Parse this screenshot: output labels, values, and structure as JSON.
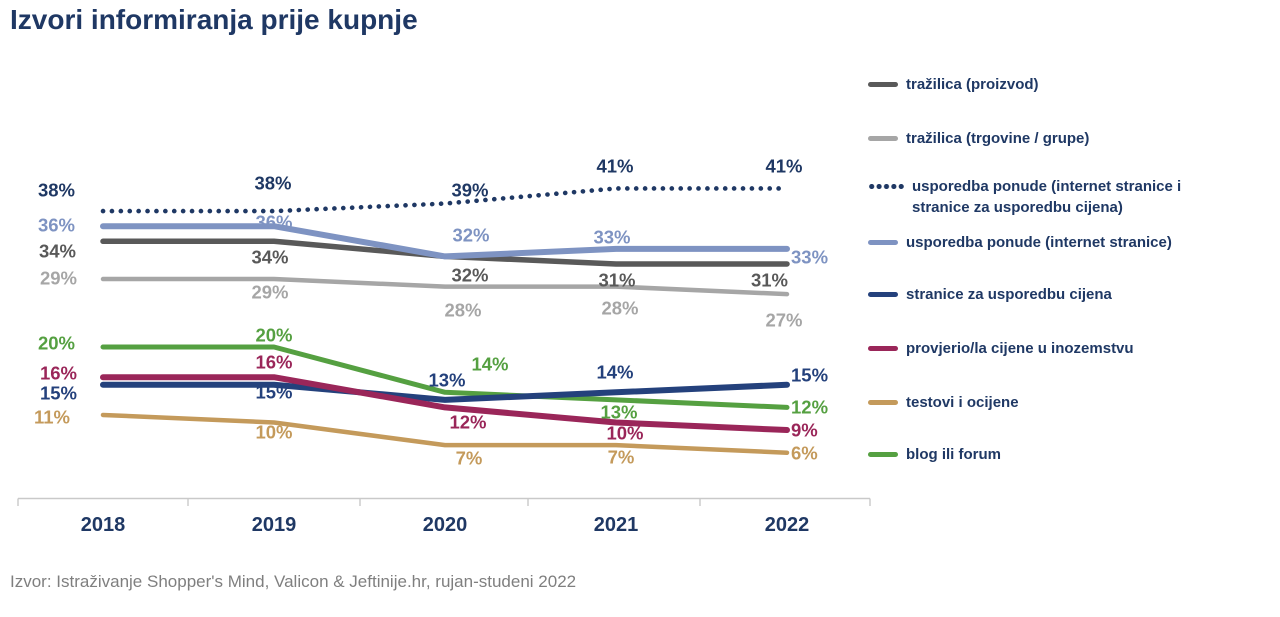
{
  "title": "Izvori informiranja prije kupnje",
  "source": "Izvor: Istraživanje Shopper's Mind, Valicon & Jeftinije.hr, rujan-studeni 2022",
  "colors": {
    "title_blue": "#1F3864",
    "axis_gray": "#C9C9C9",
    "source_gray": "#7F7F7F"
  },
  "chart_data": {
    "type": "line",
    "title": "Izvori informiranja prije kupnje",
    "categories": [
      "2018",
      "2019",
      "2020",
      "2021",
      "2022"
    ],
    "unit": "%",
    "ylim": [
      0,
      45
    ],
    "grid": false,
    "y_axis_shown": false,
    "legend_position": "right",
    "series": [
      {
        "name": "tražilica (proizvod)",
        "color": "#595959",
        "style": "solid",
        "values": [
          34,
          34,
          32,
          31,
          31
        ]
      },
      {
        "name": "tražilica (trgovine / grupe)",
        "color": "#A6A6A6",
        "style": "solid",
        "values": [
          29,
          29,
          28,
          28,
          27
        ]
      },
      {
        "name": "usporedba ponude (internet stranice i stranice za usporedbu cijena)",
        "color": "#1F3864",
        "style": "dotted",
        "values": [
          38,
          38,
          39,
          41,
          41
        ]
      },
      {
        "name": "usporedba ponude (internet stranice)",
        "color": "#7E93C2",
        "style": "solid",
        "values": [
          36,
          36,
          32,
          33,
          33
        ]
      },
      {
        "name": "stranice za usporedbu cijena",
        "color": "#24417C",
        "style": "solid",
        "values": [
          15,
          15,
          13,
          14,
          15
        ]
      },
      {
        "name": "provjerio/la cijene u inozemstvu",
        "color": "#9A2659",
        "style": "solid",
        "values": [
          16,
          16,
          12,
          10,
          9
        ]
      },
      {
        "name": "testovi i ocijene",
        "color": "#C49A5B",
        "style": "solid",
        "values": [
          11,
          10,
          7,
          7,
          6
        ]
      },
      {
        "name": "blog ili forum",
        "color": "#55A041",
        "style": "solid",
        "values": [
          20,
          20,
          14,
          13,
          12
        ]
      }
    ]
  }
}
